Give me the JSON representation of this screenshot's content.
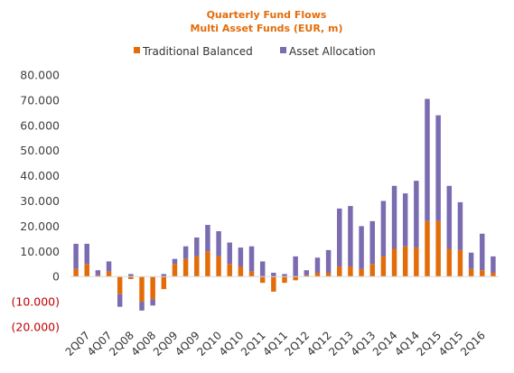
{
  "chart_data": {
    "type": "bar",
    "stacked": true,
    "title": "Quarterly Fund Flows",
    "subtitle": "Multi Asset Funds (EUR, m)",
    "title_color": "#e36c0a",
    "ylim": [
      -20000,
      80000
    ],
    "yticks": [
      {
        "value": 80000,
        "label": "80.000"
      },
      {
        "value": 70000,
        "label": "70.000"
      },
      {
        "value": 60000,
        "label": "60.000"
      },
      {
        "value": 50000,
        "label": "50.000"
      },
      {
        "value": 40000,
        "label": "40.000"
      },
      {
        "value": 30000,
        "label": "30.000"
      },
      {
        "value": 20000,
        "label": "20.000"
      },
      {
        "value": 10000,
        "label": "10.000"
      },
      {
        "value": 0,
        "label": "0"
      },
      {
        "value": -10000,
        "label": "(10.000)"
      },
      {
        "value": -20000,
        "label": "(20.000)"
      }
    ],
    "negative_tick_color": "#c00000",
    "positive_tick_color": "#404040",
    "grid": false,
    "legend_position": "top",
    "categories": [
      "1Q07",
      "2Q07",
      "3Q07",
      "4Q07",
      "1Q08",
      "2Q08",
      "3Q08",
      "4Q08",
      "1Q09",
      "2Q09",
      "3Q09",
      "4Q09",
      "1Q10",
      "2Q10",
      "3Q10",
      "4Q10",
      "1Q11",
      "2Q11",
      "3Q11",
      "4Q11",
      "1Q12",
      "2Q12",
      "3Q12",
      "4Q12",
      "1Q13",
      "2Q13",
      "3Q13",
      "4Q13",
      "1Q14",
      "2Q14",
      "3Q14",
      "4Q14",
      "1Q15",
      "2Q15",
      "3Q15",
      "4Q15",
      "1Q16",
      "2Q16",
      "3Q16"
    ],
    "x_tick_labels": [
      "2Q07",
      "4Q07",
      "2Q08",
      "4Q08",
      "2Q09",
      "4Q09",
      "2Q10",
      "4Q10",
      "2Q11",
      "4Q11",
      "2Q12",
      "4Q12",
      "2Q13",
      "4Q13",
      "2Q14",
      "4Q14",
      "2Q15",
      "4Q15",
      "2Q16"
    ],
    "series": [
      {
        "name": "Traditional Balanced",
        "color": "#e36c0a",
        "values": [
          3000,
          5000,
          500,
          2000,
          -7000,
          -1000,
          -10000,
          -9000,
          -5000,
          5000,
          7000,
          8000,
          10000,
          8000,
          5000,
          4000,
          2000,
          -2500,
          -6000,
          -2500,
          -1500,
          500,
          1500,
          1500,
          4000,
          4000,
          3000,
          5000,
          8000,
          11000,
          12000,
          11500,
          22000,
          22000,
          11000,
          10500,
          3000,
          2500,
          1500
        ]
      },
      {
        "name": "Asset Allocation",
        "color": "#7b6bb0",
        "values": [
          10000,
          8000,
          2000,
          4000,
          -5000,
          1000,
          -3500,
          -2500,
          1000,
          2000,
          5000,
          7500,
          10500,
          10000,
          8500,
          7500,
          10000,
          6000,
          1500,
          1000,
          8000,
          2000,
          6000,
          9000,
          23000,
          24000,
          17000,
          17000,
          22000,
          25000,
          21000,
          26500,
          48500,
          42000,
          25000,
          19000,
          6500,
          14500,
          6500
        ]
      }
    ]
  }
}
